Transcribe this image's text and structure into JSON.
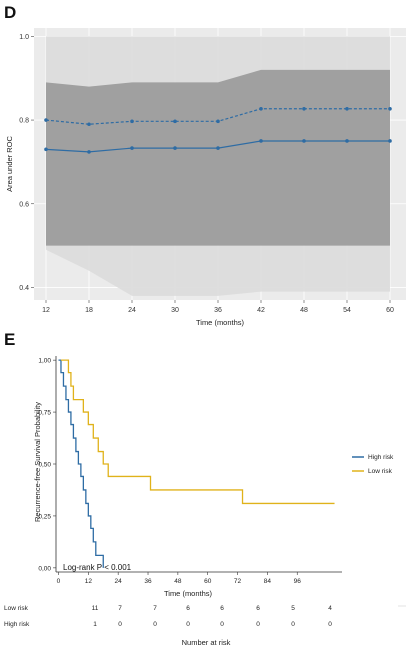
{
  "chart_data": [
    {
      "panel": "D",
      "type": "line",
      "xlabel": "Time (months)",
      "ylabel": "Area under ROC",
      "x": [
        12,
        18,
        24,
        30,
        36,
        42,
        48,
        54,
        60
      ],
      "x_ticks": [
        "12",
        "18",
        "24",
        "30",
        "36",
        "42",
        "48",
        "54",
        "60"
      ],
      "ylim": [
        0.37,
        1.02
      ],
      "y_ticks": [
        "0.4",
        "0.6",
        "0.8",
        "1.0"
      ],
      "y_tick_values": [
        0.4,
        0.6,
        0.8,
        1.0
      ],
      "grid": true,
      "series": [
        {
          "style": "dashed",
          "color": "#2e6ca4",
          "values": [
            0.8,
            0.79,
            0.797,
            0.797,
            0.797,
            0.827,
            0.827,
            0.827,
            0.827
          ]
        },
        {
          "style": "solid",
          "color": "#2e6ca4",
          "values": [
            0.73,
            0.724,
            0.733,
            0.733,
            0.733,
            0.75,
            0.75,
            0.75,
            0.75
          ]
        }
      ],
      "bands": [
        {
          "color": "#dcdcdc",
          "upper": [
            1.0,
            1.0,
            1.0,
            1.0,
            1.0,
            1.0,
            1.0,
            1.0,
            1.0
          ],
          "lower": [
            0.49,
            0.44,
            0.38,
            0.38,
            0.38,
            0.39,
            0.39,
            0.39,
            0.39
          ]
        },
        {
          "color": "#9c9c9c",
          "upper": [
            0.89,
            0.88,
            0.89,
            0.89,
            0.89,
            0.92,
            0.92,
            0.92,
            0.92
          ],
          "lower": [
            0.5,
            0.5,
            0.5,
            0.5,
            0.5,
            0.5,
            0.5,
            0.5,
            0.5
          ]
        }
      ]
    },
    {
      "panel": "E",
      "type": "line",
      "xlabel": "Time (months)",
      "ylabel": "Recurrence-free Survival Probability",
      "x_ticks": [
        "0",
        "12",
        "24",
        "36",
        "48",
        "60",
        "72",
        "84",
        "96"
      ],
      "x_tick_values": [
        0,
        12,
        24,
        36,
        48,
        60,
        72,
        84,
        96
      ],
      "xlim": [
        -1,
        114
      ],
      "y_ticks": [
        "0,00",
        "0,25",
        "0,50",
        "0,75",
        "1,00"
      ],
      "y_tick_values": [
        0,
        0.25,
        0.5,
        0.75,
        1.0
      ],
      "ylim": [
        -0.02,
        1.02
      ],
      "annotation": "Log-rank P < 0.001",
      "legend": {
        "position": "right",
        "entries": [
          "High risk",
          "Low risk"
        ]
      },
      "series": [
        {
          "name": "High risk",
          "color": "#2e6ca4",
          "points": [
            [
              0,
              1.0
            ],
            [
              1,
              1.0
            ],
            [
              1,
              0.94
            ],
            [
              2,
              0.94
            ],
            [
              2,
              0.875
            ],
            [
              3,
              0.875
            ],
            [
              3,
              0.81
            ],
            [
              4,
              0.81
            ],
            [
              4,
              0.75
            ],
            [
              5,
              0.75
            ],
            [
              5,
              0.69
            ],
            [
              6,
              0.69
            ],
            [
              6,
              0.625
            ],
            [
              7,
              0.625
            ],
            [
              7,
              0.56
            ],
            [
              8,
              0.56
            ],
            [
              8,
              0.5
            ],
            [
              9,
              0.5
            ],
            [
              9,
              0.44
            ],
            [
              10,
              0.44
            ],
            [
              10,
              0.375
            ],
            [
              11,
              0.375
            ],
            [
              11,
              0.31
            ],
            [
              12,
              0.31
            ],
            [
              12,
              0.25
            ],
            [
              13,
              0.25
            ],
            [
              13,
              0.19
            ],
            [
              14,
              0.19
            ],
            [
              14,
              0.125
            ],
            [
              15,
              0.125
            ],
            [
              15,
              0.06
            ],
            [
              18,
              0.06
            ],
            [
              18,
              0.0
            ]
          ]
        },
        {
          "name": "Low risk",
          "color": "#e0b21a",
          "points": [
            [
              1,
              1.0
            ],
            [
              4,
              1.0
            ],
            [
              4,
              0.94
            ],
            [
              5,
              0.94
            ],
            [
              5,
              0.875
            ],
            [
              6,
              0.875
            ],
            [
              6,
              0.81
            ],
            [
              10,
              0.81
            ],
            [
              10,
              0.75
            ],
            [
              12,
              0.75
            ],
            [
              12,
              0.69
            ],
            [
              14,
              0.69
            ],
            [
              14,
              0.625
            ],
            [
              16,
              0.625
            ],
            [
              16,
              0.56
            ],
            [
              18,
              0.56
            ],
            [
              18,
              0.5
            ],
            [
              20,
              0.5
            ],
            [
              20,
              0.44
            ],
            [
              37,
              0.44
            ],
            [
              37,
              0.375
            ],
            [
              74,
              0.375
            ],
            [
              74,
              0.31
            ],
            [
              111,
              0.31
            ]
          ]
        }
      ]
    }
  ],
  "risk_table": {
    "title": "Number at risk",
    "rows": [
      {
        "label": "Low risk",
        "values": [
          "11",
          "7",
          "7",
          "6",
          "6",
          "6",
          "5",
          "4"
        ]
      },
      {
        "label": "High risk",
        "values": [
          "1",
          "0",
          "0",
          "0",
          "0",
          "0",
          "0",
          "0"
        ]
      }
    ]
  },
  "labels": {
    "panel_d": "D",
    "panel_e": "E"
  }
}
